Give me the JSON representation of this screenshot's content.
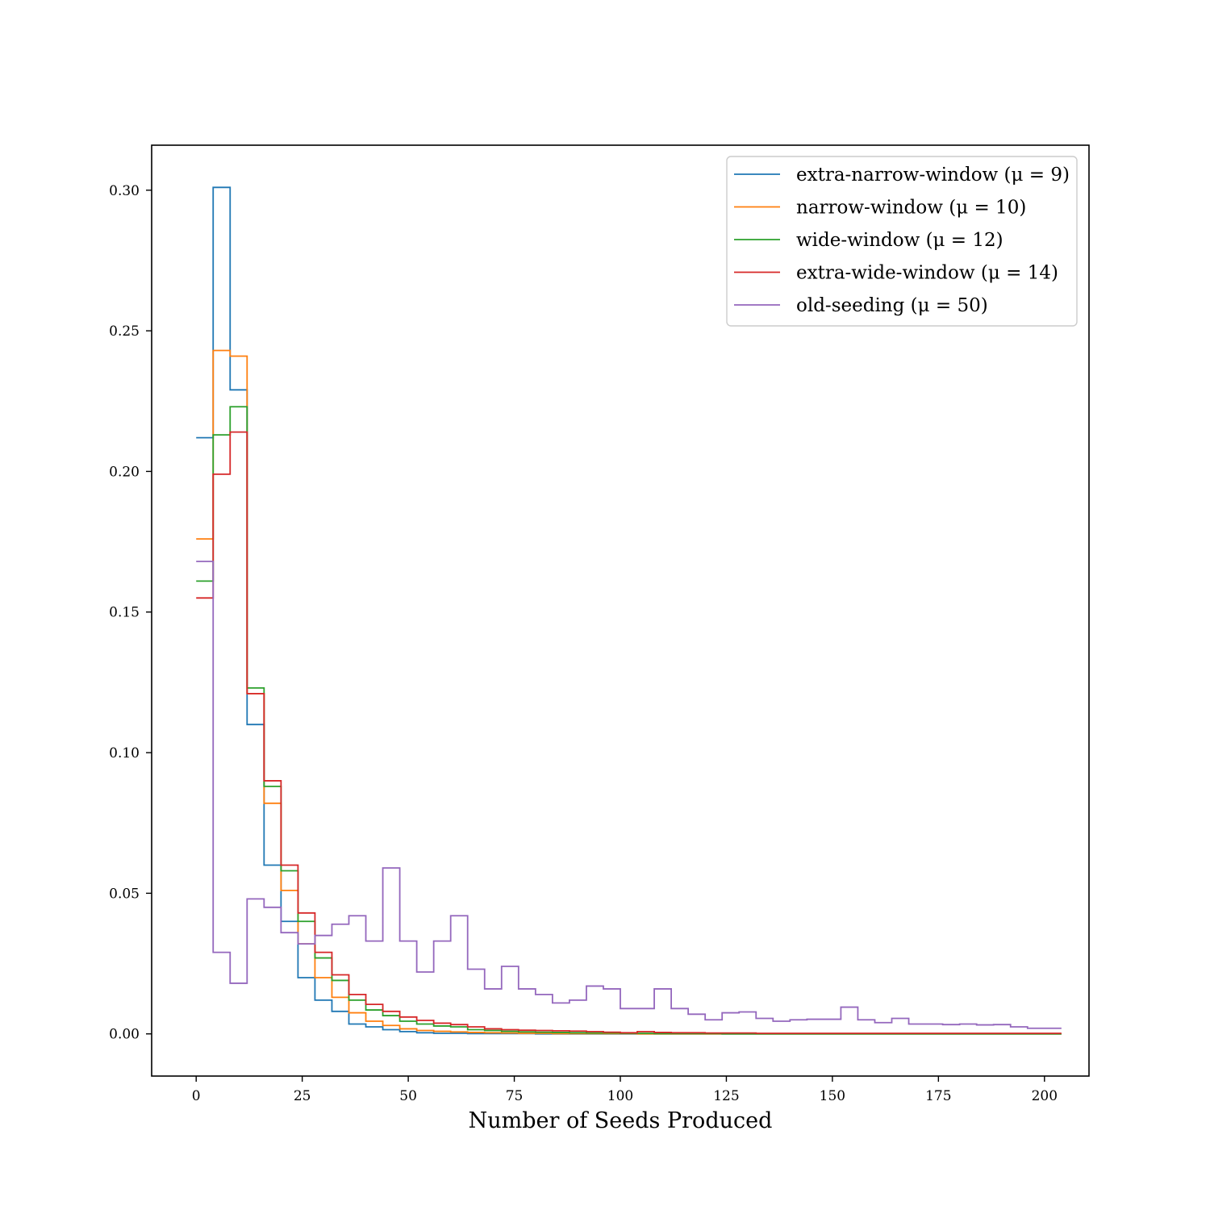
{
  "chart_data": {
    "type": "step",
    "title": "",
    "xlabel": "Number of Seeds Produced",
    "ylabel": "",
    "xlim": [
      -10.5,
      210.5
    ],
    "ylim": [
      -0.015,
      0.316
    ],
    "xticks": [
      0,
      25,
      50,
      75,
      100,
      125,
      150,
      175,
      200
    ],
    "yticks": [
      0.0,
      0.05,
      0.1,
      0.15,
      0.2,
      0.25,
      0.3
    ],
    "xtick_labels": [
      "0",
      "25",
      "50",
      "75",
      "100",
      "125",
      "150",
      "175",
      "200"
    ],
    "ytick_labels": [
      "0.00",
      "0.05",
      "0.10",
      "0.15",
      "0.20",
      "0.25",
      "0.30"
    ],
    "grid": false,
    "legend_position": "top-right",
    "bin_starts": [
      0,
      4,
      8,
      12,
      16,
      20,
      24,
      28,
      32,
      36,
      40,
      44,
      48,
      52,
      56,
      60,
      64,
      68,
      72,
      76,
      80,
      84,
      88,
      92,
      96,
      100,
      104,
      108,
      112,
      116,
      120,
      124,
      128,
      132,
      136,
      140,
      144,
      148,
      152,
      156,
      160,
      164,
      168,
      172,
      176,
      180,
      184,
      188,
      192,
      196,
      200
    ],
    "series": [
      {
        "name": "extra-narrow-window (μ = 9)",
        "color": "#1f77b4",
        "values": [
          0.212,
          0.301,
          0.229,
          0.11,
          0.06,
          0.04,
          0.02,
          0.012,
          0.008,
          0.0035,
          0.0025,
          0.0015,
          0.0008,
          0.0004,
          0.0002,
          0.0002,
          0.0001,
          0.0001,
          0.0001,
          0.0001,
          0,
          0,
          0,
          0,
          0,
          0,
          0,
          0,
          0,
          0,
          0,
          0,
          0,
          0,
          0,
          0,
          0,
          0,
          0,
          0,
          0,
          0,
          0,
          0,
          0,
          0,
          0,
          0,
          0,
          0,
          0
        ]
      },
      {
        "name": "narrow-window (μ = 10)",
        "color": "#ff7f0e",
        "values": [
          0.176,
          0.243,
          0.241,
          0.121,
          0.082,
          0.051,
          0.032,
          0.02,
          0.013,
          0.0075,
          0.0045,
          0.003,
          0.0018,
          0.0012,
          0.0009,
          0.0007,
          0.0005,
          0.0004,
          0.0003,
          0.0002,
          0.0002,
          0.0001,
          0.0001,
          0.0001,
          0.0001,
          0.0001,
          0,
          0,
          0,
          0,
          0,
          0,
          0,
          0,
          0,
          0,
          0,
          0,
          0,
          0,
          0,
          0,
          0,
          0,
          0,
          0,
          0,
          0,
          0,
          0,
          0
        ]
      },
      {
        "name": "wide-window (μ = 12)",
        "color": "#2ca02c",
        "values": [
          0.161,
          0.213,
          0.223,
          0.123,
          0.088,
          0.058,
          0.04,
          0.027,
          0.019,
          0.012,
          0.0085,
          0.0065,
          0.0045,
          0.0035,
          0.0028,
          0.0025,
          0.0015,
          0.0012,
          0.0009,
          0.0007,
          0.0006,
          0.0005,
          0.0004,
          0.0003,
          0.0003,
          0.0002,
          0.0002,
          0.0001,
          0.0001,
          0.0001,
          0.0001,
          0,
          0,
          0,
          0,
          0,
          0,
          0,
          0,
          0,
          0,
          0,
          0,
          0,
          0,
          0,
          0,
          0,
          0,
          0,
          0
        ]
      },
      {
        "name": "extra-wide-window (μ = 14)",
        "color": "#d62728",
        "values": [
          0.155,
          0.199,
          0.214,
          0.121,
          0.09,
          0.06,
          0.043,
          0.029,
          0.021,
          0.014,
          0.0105,
          0.008,
          0.006,
          0.0048,
          0.0038,
          0.0033,
          0.0025,
          0.0018,
          0.0015,
          0.0013,
          0.0012,
          0.0011,
          0.001,
          0.0008,
          0.0006,
          0.0004,
          0.0008,
          0.0005,
          0.0004,
          0.0004,
          0.0003,
          0.0003,
          0.0003,
          0.0002,
          0.0002,
          0.0002,
          0.0002,
          0.0002,
          0.0002,
          0.0002,
          0.0002,
          0.0002,
          0.0002,
          0.0002,
          0.0002,
          0.0002,
          0.0002,
          0.0002,
          0.0002,
          0.0002,
          0.0002
        ]
      },
      {
        "name": "old-seeding (μ = 50)",
        "color": "#9467bd",
        "values": [
          0.168,
          0.029,
          0.018,
          0.048,
          0.045,
          0.036,
          0.032,
          0.035,
          0.039,
          0.042,
          0.033,
          0.059,
          0.033,
          0.022,
          0.033,
          0.042,
          0.023,
          0.016,
          0.024,
          0.016,
          0.014,
          0.011,
          0.012,
          0.017,
          0.016,
          0.009,
          0.009,
          0.016,
          0.009,
          0.007,
          0.005,
          0.0075,
          0.0078,
          0.0055,
          0.0045,
          0.005,
          0.0052,
          0.0052,
          0.0095,
          0.005,
          0.004,
          0.0055,
          0.0035,
          0.0035,
          0.0033,
          0.0035,
          0.0032,
          0.0033,
          0.0025,
          0.002,
          0.002
        ]
      }
    ]
  }
}
